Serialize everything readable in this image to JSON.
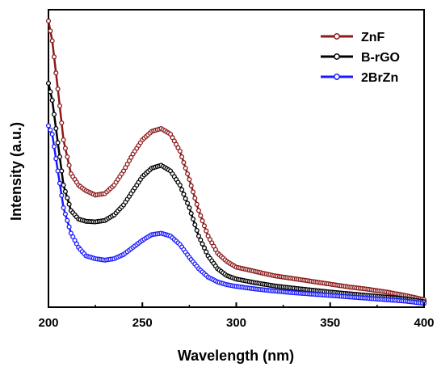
{
  "chart_data": {
    "type": "line",
    "xlabel": "Wavelength (nm)",
    "ylabel": "Intensity (a.u.)",
    "xlim": [
      200,
      400
    ],
    "ylim": [
      0,
      1
    ],
    "x_ticks": [
      200,
      250,
      300,
      350,
      400
    ],
    "y_ticks_shown": false,
    "grid": false,
    "legend_position": "top-right",
    "marker": "open-circle",
    "series": [
      {
        "name": "ZnF",
        "color": "#8b1a1a",
        "x": [
          200,
          202,
          205,
          208,
          212,
          216,
          220,
          225,
          230,
          235,
          240,
          245,
          250,
          255,
          260,
          265,
          270,
          275,
          280,
          285,
          290,
          295,
          300,
          310,
          320,
          330,
          340,
          350,
          360,
          370,
          380,
          390,
          400
        ],
        "y": [
          1.0,
          0.93,
          0.76,
          0.58,
          0.46,
          0.42,
          0.4,
          0.385,
          0.39,
          0.42,
          0.47,
          0.53,
          0.58,
          0.61,
          0.62,
          0.6,
          0.54,
          0.44,
          0.33,
          0.24,
          0.18,
          0.15,
          0.13,
          0.115,
          0.1,
          0.09,
          0.08,
          0.07,
          0.06,
          0.052,
          0.042,
          0.03,
          0.015
        ]
      },
      {
        "name": "B-rGO",
        "color": "#000000",
        "x": [
          200,
          202,
          205,
          208,
          212,
          216,
          220,
          225,
          230,
          235,
          240,
          245,
          250,
          255,
          260,
          265,
          270,
          275,
          280,
          285,
          290,
          295,
          300,
          310,
          320,
          330,
          340,
          350,
          360,
          370,
          380,
          390,
          400
        ],
        "y": [
          0.78,
          0.72,
          0.57,
          0.42,
          0.33,
          0.3,
          0.292,
          0.29,
          0.295,
          0.315,
          0.35,
          0.4,
          0.45,
          0.48,
          0.49,
          0.47,
          0.42,
          0.34,
          0.24,
          0.17,
          0.125,
          0.1,
          0.088,
          0.075,
          0.064,
          0.056,
          0.049,
          0.042,
          0.036,
          0.03,
          0.024,
          0.018,
          0.008
        ]
      },
      {
        "name": "2BrZn",
        "color": "#1a1aff",
        "x": [
          200,
          202,
          205,
          208,
          212,
          216,
          220,
          225,
          230,
          235,
          240,
          245,
          250,
          255,
          260,
          265,
          270,
          275,
          280,
          285,
          290,
          295,
          300,
          310,
          320,
          330,
          340,
          350,
          360,
          370,
          380,
          390,
          400
        ],
        "y": [
          0.63,
          0.6,
          0.47,
          0.34,
          0.25,
          0.2,
          0.17,
          0.16,
          0.155,
          0.16,
          0.175,
          0.2,
          0.225,
          0.245,
          0.25,
          0.24,
          0.21,
          0.165,
          0.125,
          0.095,
          0.078,
          0.068,
          0.062,
          0.053,
          0.046,
          0.04,
          0.035,
          0.03,
          0.025,
          0.02,
          0.015,
          0.01,
          0.002
        ]
      }
    ]
  }
}
